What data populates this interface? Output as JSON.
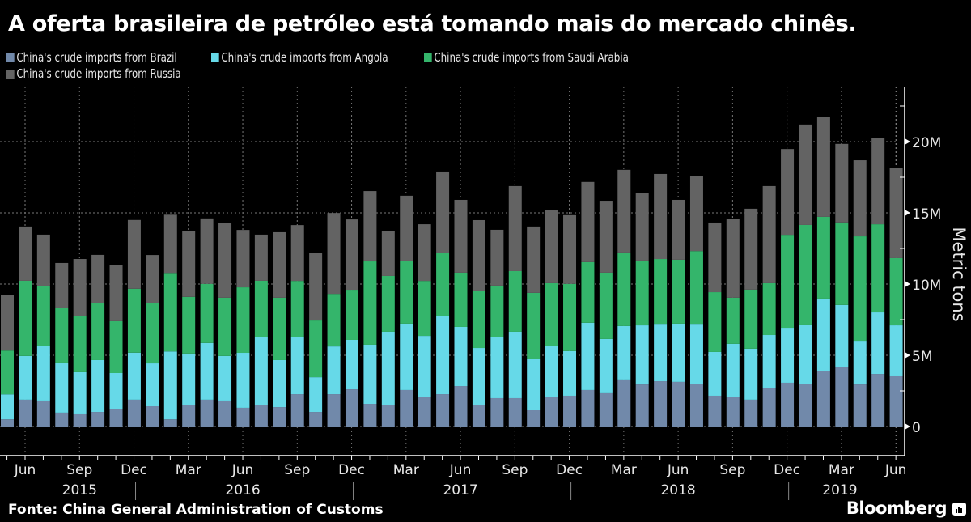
{
  "header": {
    "title": "A oferta brasileira de petróleo está tomando mais do mercado chinês."
  },
  "footer": {
    "source": "Fonte: China General Administration of Customs",
    "brand": "Bloomberg",
    "brand_icon": "bloomberg-chart-icon"
  },
  "chart_data": {
    "type": "bar",
    "stacked": true,
    "title": "A oferta brasileira de petróleo está tomando mais do mercado chinês.",
    "xlabel": "",
    "ylabel": "Metric tons",
    "ylim": [
      0,
      23000000
    ],
    "yticks": [
      0,
      5000000,
      10000000,
      15000000,
      20000000
    ],
    "ytick_labels": [
      "0",
      "5M",
      "10M",
      "15M",
      "20M"
    ],
    "grid": true,
    "legend_position": "top-left",
    "xtick_labels": [
      "Jun",
      "Sep",
      "Dec",
      "Mar",
      "Jun",
      "Sep",
      "Dec",
      "Mar",
      "Jun",
      "Sep",
      "Dec",
      "Mar",
      "Jun",
      "Sep",
      "Dec",
      "Mar",
      "Jun"
    ],
    "xtick_months": [
      "2015-06",
      "2015-09",
      "2015-12",
      "2016-03",
      "2016-06",
      "2016-09",
      "2016-12",
      "2017-03",
      "2017-06",
      "2017-09",
      "2017-12",
      "2018-03",
      "2018-06",
      "2018-09",
      "2018-12",
      "2019-03",
      "2019-06"
    ],
    "year_labels": [
      {
        "label": "2015",
        "center_month": "2015-09"
      },
      {
        "label": "2016",
        "center_month": "2016-06"
      },
      {
        "label": "2017",
        "center_month": "2017-06"
      },
      {
        "label": "2018",
        "center_month": "2018-06"
      },
      {
        "label": "2019",
        "center_month": "2019-03"
      }
    ],
    "categories": [
      "2015-05",
      "2015-06",
      "2015-07",
      "2015-08",
      "2015-09",
      "2015-10",
      "2015-11",
      "2015-12",
      "2016-01",
      "2016-02",
      "2016-03",
      "2016-04",
      "2016-05",
      "2016-06",
      "2016-07",
      "2016-08",
      "2016-09",
      "2016-10",
      "2016-11",
      "2016-12",
      "2017-01",
      "2017-02",
      "2017-03",
      "2017-04",
      "2017-05",
      "2017-06",
      "2017-07",
      "2017-08",
      "2017-09",
      "2017-10",
      "2017-11",
      "2017-12",
      "2018-01",
      "2018-02",
      "2018-03",
      "2018-04",
      "2018-05",
      "2018-06",
      "2018-07",
      "2018-08",
      "2018-09",
      "2018-10",
      "2018-11",
      "2018-12",
      "2019-01",
      "2019-02",
      "2019-03",
      "2019-04",
      "2019-05",
      "2019-06"
    ],
    "units": "million metric tons",
    "series": [
      {
        "name": "China's crude imports from Brazil",
        "color": "#7189aa",
        "values": [
          0.5,
          1.88,
          1.82,
          0.97,
          0.91,
          1.02,
          1.25,
          1.88,
          1.42,
          0.5,
          1.48,
          1.88,
          1.82,
          1.31,
          1.48,
          1.36,
          2.27,
          1.02,
          2.27,
          2.61,
          1.59,
          1.48,
          2.56,
          2.1,
          2.27,
          2.84,
          1.53,
          1.99,
          1.99,
          1.14,
          2.1,
          2.16,
          2.56,
          2.39,
          3.3,
          2.95,
          3.18,
          3.13,
          3.01,
          2.16,
          2.05,
          1.88,
          2.67,
          3.07,
          3.01,
          3.92,
          4.15,
          2.95,
          3.69,
          3.58
        ]
      },
      {
        "name": "China's crude imports from Angola",
        "color": "#66d9e8",
        "values": [
          1.76,
          3.07,
          3.81,
          3.52,
          2.9,
          3.64,
          2.5,
          3.3,
          3.01,
          4.77,
          3.64,
          3.98,
          3.13,
          3.86,
          4.77,
          3.3,
          4.03,
          2.44,
          3.35,
          3.47,
          4.15,
          5.17,
          4.66,
          4.26,
          5.51,
          4.15,
          3.98,
          4.26,
          4.66,
          3.58,
          3.58,
          3.13,
          4.72,
          3.75,
          3.75,
          4.15,
          4.03,
          4.09,
          4.2,
          3.07,
          3.75,
          3.58,
          3.75,
          3.86,
          4.15,
          5.06,
          4.38,
          3.07,
          4.32,
          3.52
        ]
      },
      {
        "name": "China's crude imports from Saudi Arabia",
        "color": "#34b56b",
        "values": [
          3.07,
          5.28,
          4.2,
          3.86,
          3.92,
          3.98,
          3.64,
          4.49,
          4.26,
          5.51,
          3.98,
          4.15,
          4.09,
          4.6,
          3.98,
          4.38,
          3.92,
          3.98,
          3.69,
          3.52,
          5.85,
          3.92,
          4.38,
          3.86,
          4.38,
          3.81,
          3.98,
          3.64,
          4.26,
          4.66,
          4.38,
          4.72,
          4.26,
          4.66,
          5.17,
          4.55,
          4.55,
          4.49,
          5.11,
          4.2,
          3.24,
          4.15,
          3.64,
          6.53,
          6.99,
          5.74,
          5.8,
          7.33,
          6.19,
          4.72
        ]
      },
      {
        "name": "China's crude imports from Russia",
        "color": "#636363",
        "values": [
          3.92,
          3.81,
          3.64,
          3.13,
          4.03,
          3.41,
          3.92,
          4.83,
          3.35,
          4.09,
          4.6,
          4.6,
          5.23,
          4.03,
          3.24,
          4.6,
          3.92,
          4.77,
          5.68,
          4.94,
          4.94,
          3.18,
          4.6,
          3.98,
          5.74,
          5.11,
          5.0,
          3.92,
          5.97,
          4.66,
          5.11,
          4.83,
          5.63,
          5.05,
          5.8,
          4.72,
          5.97,
          4.2,
          5.28,
          4.89,
          5.51,
          5.68,
          6.82,
          6.02,
          7.05,
          7.0,
          5.51,
          5.34,
          6.08,
          6.36
        ]
      }
    ]
  }
}
